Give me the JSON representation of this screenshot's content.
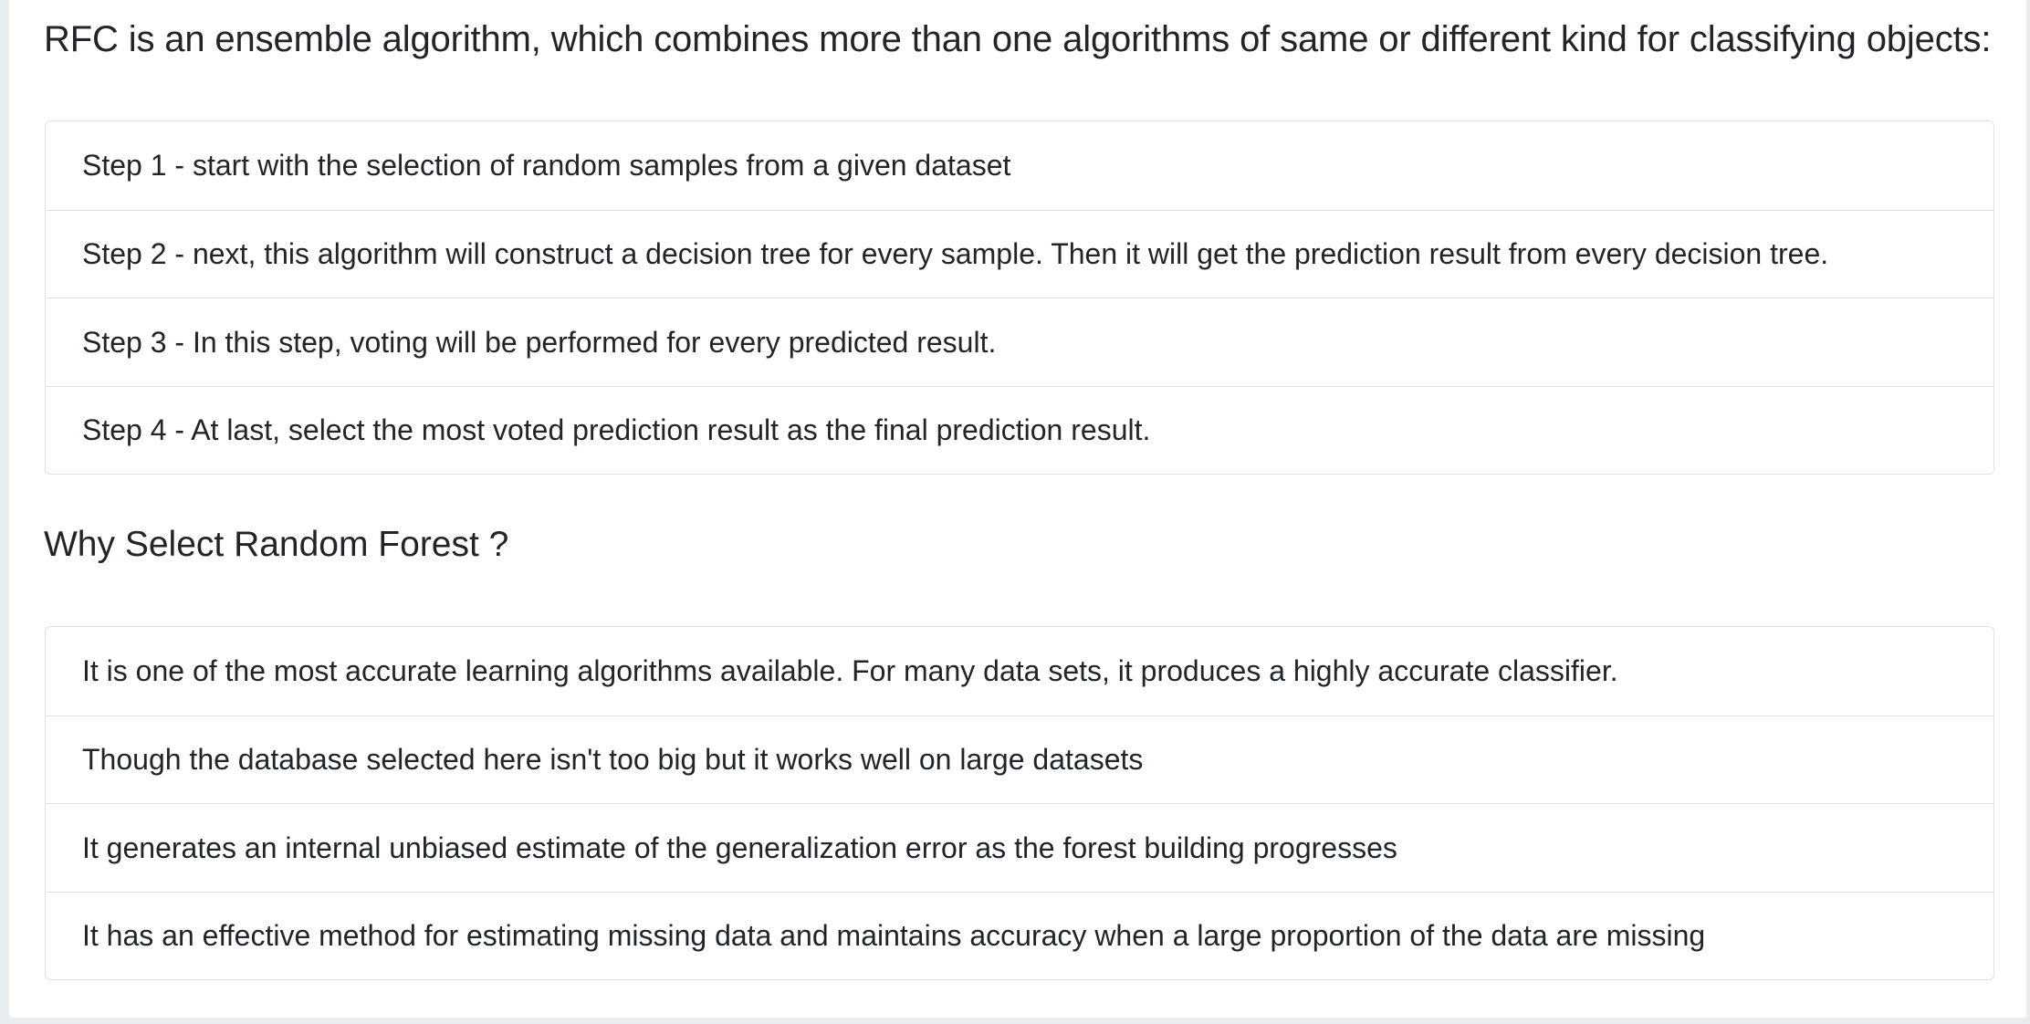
{
  "intro": {
    "heading": "RFC is an ensemble algorithm, which combines more than one algorithms of same or different kind for classifying objects:"
  },
  "steps": [
    "Step 1 - start with the selection of random samples from a given dataset",
    "Step 2 - next, this algorithm will construct a decision tree for every sample. Then it will get the prediction result from every decision tree.",
    "Step 3 - In this step, voting will be performed for every predicted result.",
    "Step 4 - At last, select the most voted prediction result as the final prediction result."
  ],
  "why": {
    "heading": "Why Select Random Forest ?"
  },
  "reasons": [
    "It is one of the most accurate learning algorithms available. For many data sets, it produces a highly accurate classifier.",
    "Though the database selected here isn't too big but it works well on large datasets",
    "It generates an internal unbiased estimate of the generalization error as the forest building progresses",
    "It has an effective method for estimating missing data and maintains accuracy when a large proportion of the data are missing"
  ]
}
